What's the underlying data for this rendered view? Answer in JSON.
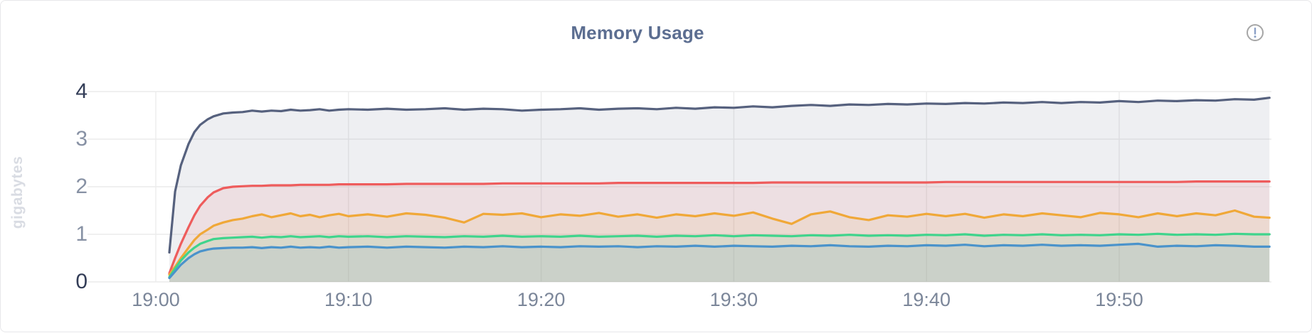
{
  "header": {
    "title": "Memory Usage",
    "info_icon": "circle-exclamation-icon"
  },
  "chart_data": {
    "type": "area",
    "title": "Memory Usage",
    "xlabel": "",
    "ylabel": "gigabytes",
    "ylim": [
      0,
      4
    ],
    "ytick_labels": [
      "0",
      "1",
      "2",
      "3",
      "4"
    ],
    "xticks": [
      {
        "minute": 0,
        "label": "19:00"
      },
      {
        "minute": 10,
        "label": "19:10"
      },
      {
        "minute": 20,
        "label": "19:20"
      },
      {
        "minute": 30,
        "label": "19:30"
      },
      {
        "minute": 40,
        "label": "19:40"
      },
      {
        "minute": 50,
        "label": "19:50"
      }
    ],
    "x_range_minutes": [
      0,
      58
    ],
    "grid": true,
    "legend_position": "none",
    "x_minutes": [
      0.7,
      1,
      1.3,
      1.7,
      2,
      2.3,
      2.7,
      3,
      3.5,
      4,
      4.5,
      5,
      5.5,
      6,
      6.5,
      7,
      7.5,
      8,
      8.5,
      9,
      9.5,
      10,
      11,
      12,
      13,
      14,
      15,
      16,
      17,
      18,
      19,
      20,
      21,
      22,
      23,
      24,
      25,
      26,
      27,
      28,
      29,
      30,
      31,
      32,
      33,
      34,
      35,
      36,
      37,
      38,
      39,
      40,
      41,
      42,
      43,
      44,
      45,
      46,
      47,
      48,
      49,
      50,
      51,
      52,
      53,
      54,
      55,
      56,
      57,
      57.8
    ],
    "series": [
      {
        "name": "slate-line",
        "color": "#56617e",
        "values": [
          0.62,
          1.9,
          2.45,
          2.9,
          3.15,
          3.3,
          3.42,
          3.48,
          3.54,
          3.56,
          3.57,
          3.6,
          3.58,
          3.6,
          3.59,
          3.62,
          3.6,
          3.61,
          3.63,
          3.6,
          3.62,
          3.63,
          3.62,
          3.64,
          3.62,
          3.63,
          3.65,
          3.62,
          3.64,
          3.63,
          3.6,
          3.62,
          3.63,
          3.65,
          3.62,
          3.64,
          3.65,
          3.63,
          3.66,
          3.64,
          3.67,
          3.66,
          3.69,
          3.67,
          3.7,
          3.72,
          3.7,
          3.73,
          3.72,
          3.74,
          3.73,
          3.75,
          3.74,
          3.76,
          3.75,
          3.77,
          3.76,
          3.78,
          3.76,
          3.78,
          3.77,
          3.8,
          3.78,
          3.81,
          3.8,
          3.82,
          3.81,
          3.84,
          3.83,
          3.87
        ]
      },
      {
        "name": "red-line",
        "color": "#ee5c5c",
        "values": [
          0.18,
          0.5,
          0.8,
          1.15,
          1.4,
          1.6,
          1.78,
          1.88,
          1.97,
          2.0,
          2.01,
          2.02,
          2.02,
          2.03,
          2.03,
          2.03,
          2.04,
          2.04,
          2.04,
          2.04,
          2.05,
          2.05,
          2.05,
          2.05,
          2.06,
          2.06,
          2.06,
          2.06,
          2.06,
          2.07,
          2.07,
          2.07,
          2.07,
          2.07,
          2.07,
          2.08,
          2.08,
          2.08,
          2.08,
          2.08,
          2.08,
          2.08,
          2.08,
          2.09,
          2.09,
          2.09,
          2.09,
          2.09,
          2.09,
          2.09,
          2.09,
          2.09,
          2.1,
          2.1,
          2.1,
          2.1,
          2.1,
          2.1,
          2.1,
          2.1,
          2.1,
          2.1,
          2.1,
          2.1,
          2.1,
          2.11,
          2.11,
          2.11,
          2.11,
          2.11
        ]
      },
      {
        "name": "orange-line",
        "color": "#f0a838",
        "values": [
          0.15,
          0.32,
          0.5,
          0.72,
          0.88,
          1.0,
          1.1,
          1.18,
          1.25,
          1.3,
          1.33,
          1.38,
          1.42,
          1.36,
          1.4,
          1.44,
          1.38,
          1.41,
          1.36,
          1.4,
          1.43,
          1.38,
          1.42,
          1.37,
          1.44,
          1.41,
          1.35,
          1.25,
          1.43,
          1.41,
          1.44,
          1.36,
          1.42,
          1.39,
          1.45,
          1.37,
          1.42,
          1.35,
          1.42,
          1.38,
          1.44,
          1.39,
          1.46,
          1.33,
          1.22,
          1.42,
          1.48,
          1.36,
          1.3,
          1.4,
          1.37,
          1.43,
          1.38,
          1.43,
          1.35,
          1.42,
          1.38,
          1.44,
          1.4,
          1.36,
          1.45,
          1.42,
          1.36,
          1.44,
          1.38,
          1.44,
          1.4,
          1.5,
          1.37,
          1.35
        ]
      },
      {
        "name": "green-line",
        "color": "#3fd48c",
        "values": [
          0.1,
          0.28,
          0.45,
          0.62,
          0.72,
          0.8,
          0.86,
          0.9,
          0.92,
          0.93,
          0.94,
          0.95,
          0.93,
          0.95,
          0.94,
          0.96,
          0.94,
          0.95,
          0.96,
          0.94,
          0.96,
          0.95,
          0.96,
          0.94,
          0.96,
          0.95,
          0.94,
          0.96,
          0.95,
          0.97,
          0.95,
          0.96,
          0.95,
          0.97,
          0.95,
          0.96,
          0.97,
          0.95,
          0.97,
          0.96,
          0.98,
          0.96,
          0.98,
          0.97,
          0.96,
          0.98,
          0.97,
          0.99,
          0.97,
          0.98,
          0.97,
          0.99,
          0.98,
          1.0,
          0.97,
          0.99,
          0.98,
          1.0,
          0.98,
          0.99,
          0.98,
          1.0,
          0.99,
          1.01,
          0.99,
          1.0,
          0.99,
          1.01,
          1.0,
          1.0
        ]
      },
      {
        "name": "blue-line",
        "color": "#4a93cb",
        "values": [
          0.08,
          0.22,
          0.36,
          0.5,
          0.58,
          0.64,
          0.68,
          0.7,
          0.71,
          0.72,
          0.72,
          0.73,
          0.71,
          0.73,
          0.72,
          0.74,
          0.72,
          0.73,
          0.72,
          0.74,
          0.72,
          0.73,
          0.74,
          0.72,
          0.74,
          0.73,
          0.72,
          0.74,
          0.73,
          0.75,
          0.73,
          0.74,
          0.73,
          0.75,
          0.74,
          0.75,
          0.73,
          0.75,
          0.74,
          0.76,
          0.74,
          0.76,
          0.75,
          0.74,
          0.76,
          0.75,
          0.77,
          0.75,
          0.74,
          0.76,
          0.75,
          0.77,
          0.76,
          0.78,
          0.75,
          0.77,
          0.76,
          0.78,
          0.76,
          0.77,
          0.76,
          0.78,
          0.8,
          0.74,
          0.76,
          0.75,
          0.77,
          0.76,
          0.74,
          0.74
        ]
      }
    ],
    "style": {
      "gridline_color": "#ececec",
      "fill_opacity": 0.1,
      "ytick_major_color": "#333d57",
      "ytick_minor_color": "#8791a4",
      "xtick_color": "#7b8699",
      "title_color": "#5c6e91",
      "ylabel_color": "#d9dce3",
      "info_icon_ring_color": "#a6a6a6",
      "info_icon_mark_color": "#8ba0c6"
    }
  }
}
